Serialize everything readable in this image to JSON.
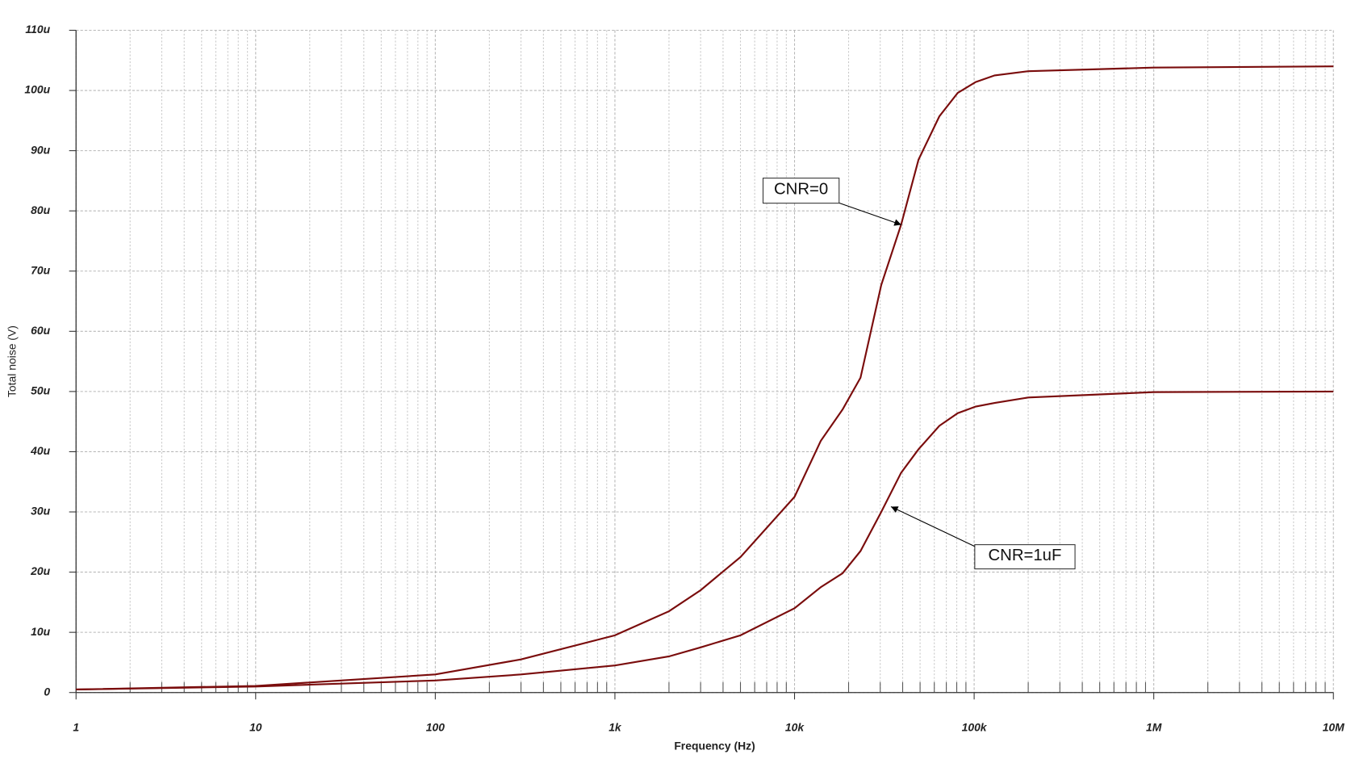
{
  "chart_data": {
    "type": "line",
    "xlabel": "Frequency (Hz)",
    "ylabel": "Total noise (V)",
    "x": [
      1,
      10,
      100,
      300,
      1000,
      2000,
      3000,
      5000,
      10000,
      14000,
      18500,
      23300,
      30400,
      39200,
      49000,
      64000,
      81000,
      102000,
      130000,
      200000,
      1000000,
      10000000
    ],
    "series": [
      {
        "name": "CNR=0",
        "color": "#7a0c0c",
        "values": [
          0.5,
          1.1,
          3,
          5.5,
          9.5,
          13.5,
          17,
          22.5,
          32.5,
          41.8,
          47,
          52.3,
          67.7,
          77.7,
          88.5,
          95.7,
          99.6,
          101.4,
          102.5,
          103.2,
          103.8,
          104
        ]
      },
      {
        "name": "CNR=1uF",
        "color": "#7a0c0c",
        "values": [
          0.5,
          1,
          2,
          3,
          4.5,
          6,
          7.5,
          9.5,
          14,
          17.5,
          19.8,
          23.5,
          30,
          36.5,
          40.4,
          44.3,
          46.4,
          47.5,
          48.1,
          49,
          49.9,
          50
        ]
      }
    ],
    "xlog": true,
    "xlim": [
      1,
      10000000
    ],
    "xticks": [
      1,
      10,
      100,
      {
        "value": 1000,
        "label": "1k"
      },
      {
        "value": 10000,
        "label": "10k"
      },
      {
        "value": 100000,
        "label": "100k"
      },
      {
        "value": 1000000,
        "label": "1M"
      },
      {
        "value": 10000000,
        "label": "10M"
      }
    ],
    "ylim": [
      0,
      110
    ],
    "yticks": [
      0,
      {
        "value": 10,
        "label": "10u"
      },
      {
        "value": 20,
        "label": "20u"
      },
      {
        "value": 30,
        "label": "30u"
      },
      {
        "value": 40,
        "label": "40u"
      },
      {
        "value": 50,
        "label": "50u"
      },
      {
        "value": 60,
        "label": "60u"
      },
      {
        "value": 70,
        "label": "70u"
      },
      {
        "value": 80,
        "label": "80u"
      },
      {
        "value": 90,
        "label": "90u"
      },
      {
        "value": 100,
        "label": "100u"
      },
      {
        "value": 110,
        "label": "110u"
      }
    ],
    "grid": true
  }
}
